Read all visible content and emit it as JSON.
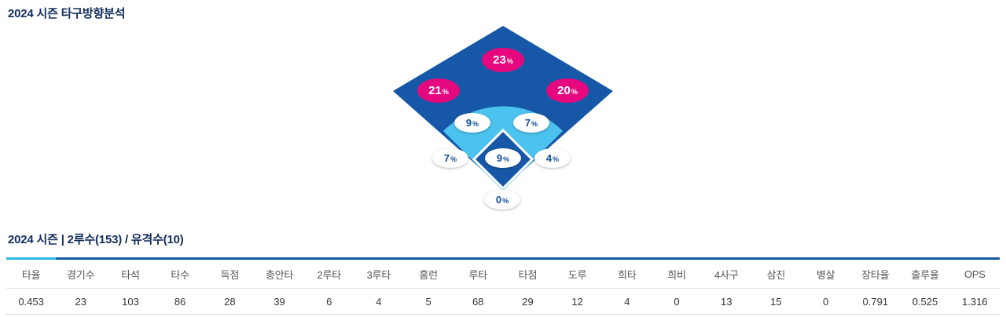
{
  "page": {
    "title": "2024 시즌 타구방향분석",
    "section_title": "2024 시즌 | 2루수(153) / 유격수(10)",
    "percent_sign": "%"
  },
  "field": {
    "colors": {
      "field_dark_blue": "#1658a7",
      "field_light_blue": "#4cc3ee",
      "bubble_pink": "#e5087e",
      "bubble_text_blue": "#0f4c97",
      "table_border_blue": "#1658a7",
      "table_accent_cyan": "#2bb7e9",
      "title_navy": "#112d5b"
    },
    "zones": {
      "left_outfield": "21",
      "center_outfield": "23",
      "right_outfield": "20",
      "infield_upper_left": "9",
      "infield_upper_right": "7",
      "infield_left": "7",
      "infield_center": "9",
      "infield_right": "4",
      "home": "0"
    }
  },
  "stats_table": {
    "columns": [
      "타율",
      "경기수",
      "타석",
      "타수",
      "득점",
      "총안타",
      "2루타",
      "3루타",
      "홈런",
      "루타",
      "타점",
      "도루",
      "희타",
      "희비",
      "4사구",
      "삼진",
      "병살",
      "장타율",
      "출루율",
      "OPS"
    ],
    "values": [
      "0.453",
      "23",
      "103",
      "86",
      "28",
      "39",
      "6",
      "4",
      "5",
      "68",
      "29",
      "12",
      "4",
      "0",
      "13",
      "15",
      "0",
      "0.791",
      "0.525",
      "1.316"
    ]
  },
  "chart_data": [
    {
      "type": "heatmap",
      "title": "2024 시즌 타구방향분석",
      "categories": [
        "left_outfield",
        "center_outfield",
        "right_outfield",
        "infield_upper_left",
        "infield_upper_right",
        "infield_left",
        "infield_center",
        "infield_right",
        "home"
      ],
      "values": [
        21,
        23,
        20,
        9,
        7,
        7,
        9,
        4,
        0
      ],
      "unit": "%",
      "legend_position": "none",
      "notes": "baseball spray-direction diamond; outfield zones highlighted pink, infield zones white"
    },
    {
      "type": "table",
      "title": "2024 시즌 | 2루수(153) / 유격수(10)",
      "categories": [
        "타율",
        "경기수",
        "타석",
        "타수",
        "득점",
        "총안타",
        "2루타",
        "3루타",
        "홈런",
        "루타",
        "타점",
        "도루",
        "희타",
        "희비",
        "4사구",
        "삼진",
        "병살",
        "장타율",
        "출루율",
        "OPS"
      ],
      "values": [
        0.453,
        23,
        103,
        86,
        28,
        39,
        6,
        4,
        5,
        68,
        29,
        12,
        4,
        0,
        13,
        15,
        0,
        0.791,
        0.525,
        1.316
      ]
    }
  ]
}
